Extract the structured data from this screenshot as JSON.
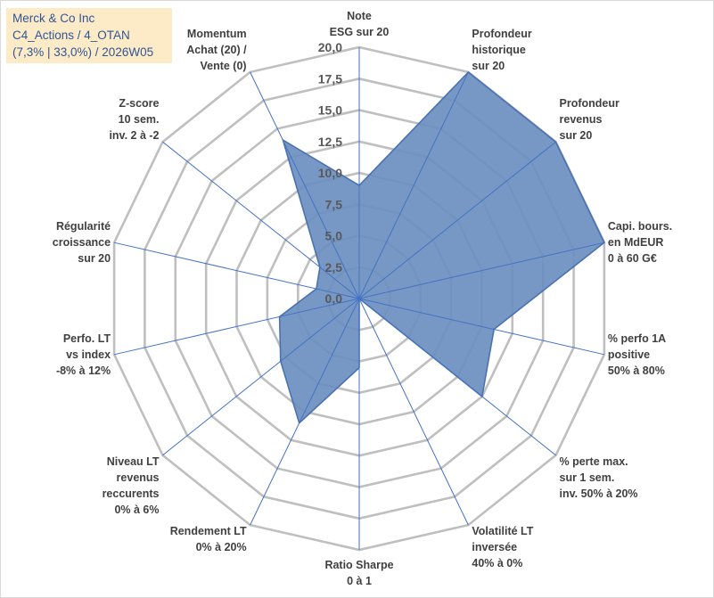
{
  "title_box": {
    "line1": "Merck & Co Inc",
    "line2": "C4_Actions / 4_OTAN",
    "line3": "(7,3% | 33,0%) / 2026W05"
  },
  "chart_data": {
    "type": "radar",
    "title": "Merck & Co Inc",
    "rmin": 0,
    "rmax": 20,
    "tick_step": 2.5,
    "tick_labels": [
      "0,0",
      "2,5",
      "5,0",
      "7,5",
      "10,0",
      "12,5",
      "15,0",
      "17,5",
      "20,0"
    ],
    "categories": [
      [
        "Note",
        "ESG sur 20"
      ],
      [
        "Profondeur",
        "historique",
        "sur 20"
      ],
      [
        "Profondeur",
        "revenus",
        "sur 20"
      ],
      [
        "Capi. bours.",
        "en MdEUR",
        "0 à 60 G€"
      ],
      [
        "% perfo 1A",
        "positive",
        "50% à 80%"
      ],
      [
        "% perte max.",
        "sur 1 sem.",
        "inv. 50% à 20%"
      ],
      [
        "Volatilité LT",
        "inversée",
        "40% à 0%"
      ],
      [
        "Ratio Sharpe",
        "0 à 1"
      ],
      [
        "Rendement LT",
        "0% à 20%"
      ],
      [
        "Niveau LT",
        "revenus",
        "reccurents",
        "0% à 6%"
      ],
      [
        "Perfo. LT",
        "vs index",
        "-8% à 12%"
      ],
      [
        "Régularité",
        "croissance",
        "sur 20"
      ],
      [
        "Z-score",
        "10 sem.",
        "inv. 2 à -2"
      ],
      [
        "Momentum",
        "Achat (20) /",
        "Vente (0)"
      ]
    ],
    "series": [
      {
        "name": "Merck & Co Inc",
        "values": [
          9.0,
          20.0,
          20.0,
          20.0,
          11.0,
          12.5,
          0.0,
          5.5,
          11.0,
          8.0,
          6.5,
          3.5,
          4.0,
          14.0
        ],
        "fill": "#6b8fc0",
        "stroke": "#4a72b0"
      }
    ],
    "grid_color": "#bfbfbf",
    "spoke_color": "#4472c4"
  }
}
